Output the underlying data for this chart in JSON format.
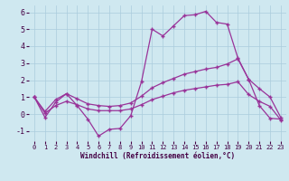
{
  "xlabel": "Windchill (Refroidissement éolien,°C)",
  "bg_color": "#cfe8f0",
  "line_color": "#993399",
  "xlim": [
    -0.5,
    23.5
  ],
  "ylim": [
    -1.6,
    6.4
  ],
  "yticks": [
    -1,
    0,
    1,
    2,
    3,
    4,
    5,
    6
  ],
  "xticks": [
    0,
    1,
    2,
    3,
    4,
    5,
    6,
    7,
    8,
    9,
    10,
    11,
    12,
    13,
    14,
    15,
    16,
    17,
    18,
    19,
    20,
    21,
    22,
    23
  ],
  "line1_y": [
    1.0,
    -0.2,
    0.7,
    1.2,
    0.5,
    -0.3,
    -1.3,
    -0.9,
    -0.85,
    -0.1,
    1.9,
    5.0,
    4.6,
    5.2,
    5.8,
    5.85,
    6.05,
    5.4,
    5.3,
    3.3,
    2.05,
    0.5,
    -0.25,
    -0.3
  ],
  "line2_y": [
    1.0,
    0.15,
    0.85,
    1.2,
    0.9,
    0.6,
    0.5,
    0.45,
    0.5,
    0.65,
    1.05,
    1.55,
    1.85,
    2.1,
    2.35,
    2.5,
    2.65,
    2.75,
    2.95,
    3.25,
    2.05,
    1.5,
    1.0,
    -0.2
  ],
  "line3_y": [
    1.0,
    0.05,
    0.5,
    0.75,
    0.55,
    0.3,
    0.2,
    0.2,
    0.2,
    0.3,
    0.55,
    0.85,
    1.05,
    1.25,
    1.4,
    1.5,
    1.6,
    1.7,
    1.75,
    1.9,
    1.15,
    0.75,
    0.45,
    -0.35
  ]
}
